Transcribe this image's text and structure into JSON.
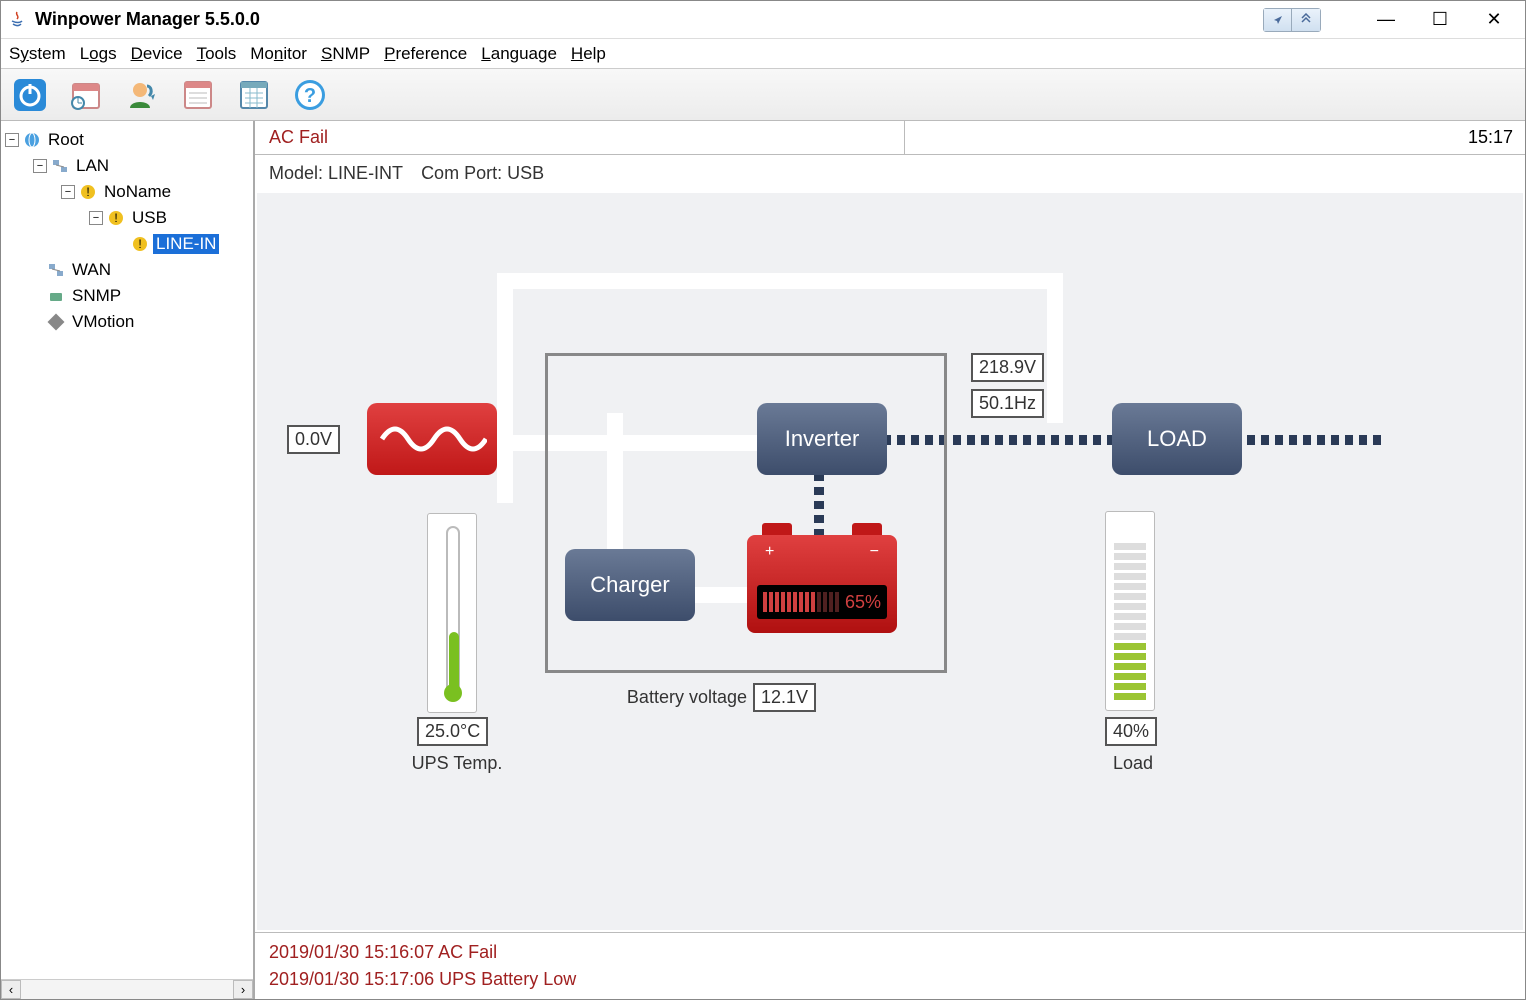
{
  "window": {
    "title": "Winpower Manager 5.5.0.0"
  },
  "menu": {
    "system": "System",
    "logs": "Logs",
    "device": "Device",
    "tools": "Tools",
    "monitor": "Monitor",
    "snmp": "SNMP",
    "preference": "Preference",
    "language": "Language",
    "help": "Help"
  },
  "tree": {
    "root": "Root",
    "lan": "LAN",
    "noname": "NoName",
    "usb": "USB",
    "lineint": "LINE-IN",
    "wan": "WAN",
    "snmp": "SNMP",
    "vmotion": "VMotion"
  },
  "status": {
    "alert": "AC Fail",
    "time": "15:17"
  },
  "info": {
    "model_label": "Model:",
    "model": "LINE-INT",
    "port_label": "Com Port:",
    "port": "USB"
  },
  "diagram": {
    "input_voltage": "0.0V",
    "output_voltage": "218.9V",
    "output_freq": "50.1Hz",
    "inverter": "Inverter",
    "charger": "Charger",
    "load": "LOAD",
    "battery_pct": "65%",
    "battery_voltage_label": "Battery voltage",
    "battery_voltage": "12.1V",
    "temp_value": "25.0°C",
    "temp_label": "UPS Temp.",
    "load_value": "40%",
    "load_label": "Load",
    "colors": {
      "blue_box": "#4a5c7a",
      "red_box": "#cc2020",
      "bg": "#f0f1f3",
      "wire": "#ffffff",
      "frame": "#888888"
    },
    "load_bars_total": 16,
    "load_bars_on": 6,
    "battery_bars_total": 13,
    "battery_bars_on": 9
  },
  "log": [
    "2019/01/30 15:16:07  AC Fail",
    "2019/01/30 15:17:06  UPS Battery Low"
  ]
}
